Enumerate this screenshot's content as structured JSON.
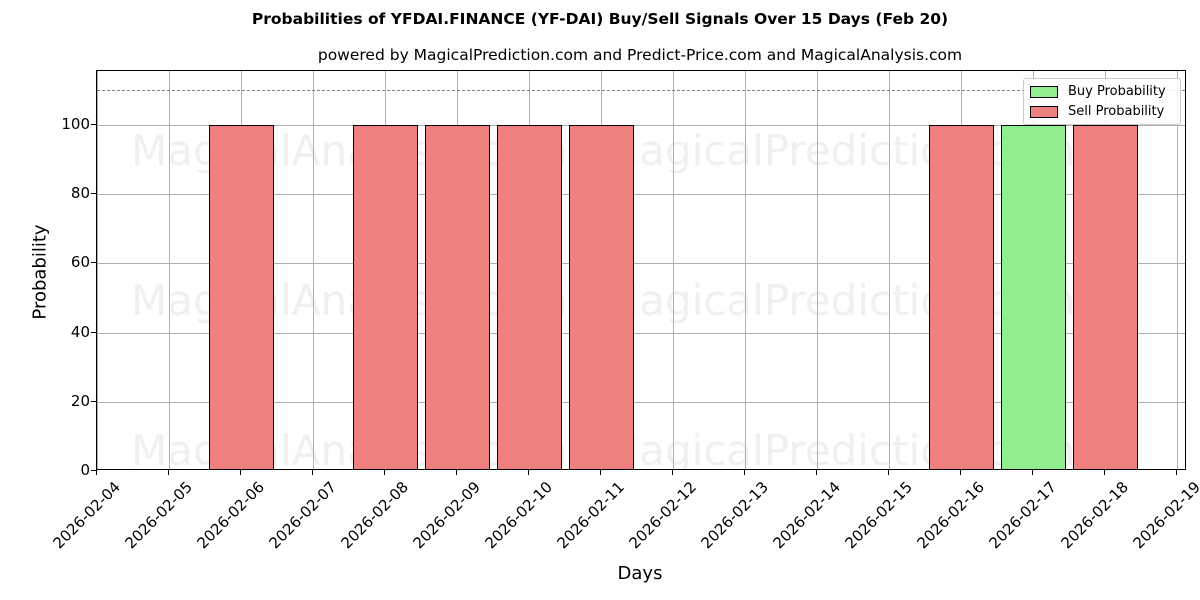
{
  "chart_data": {
    "type": "bar",
    "title": "Probabilities of YFDAI.FINANCE (YF-DAI) Buy/Sell Signals Over 15 Days (Feb 20)",
    "subtitle": "powered by MagicalPrediction.com and Predict-Price.com and MagicalAnalysis.com",
    "xlabel": "Days",
    "ylabel": "Probability",
    "ylim": [
      0,
      115.6
    ],
    "yticks": [
      0,
      20,
      40,
      60,
      80,
      100
    ],
    "xticks": [
      "2026-02-04",
      "2026-02-05",
      "2026-02-06",
      "2026-02-07",
      "2026-02-08",
      "2026-02-09",
      "2026-02-10",
      "2026-02-11",
      "2026-02-12",
      "2026-02-13",
      "2026-02-14",
      "2026-02-15",
      "2026-02-16",
      "2026-02-17",
      "2026-02-18",
      "2026-02-19"
    ],
    "reference_line": {
      "y": 110,
      "style": "dashed",
      "color": "#808080"
    },
    "grid": true,
    "legend_position": "upper right",
    "series": [
      {
        "name": "Buy Probability",
        "color": "#90EE90",
        "points": [
          {
            "x": "2026-02-17",
            "y": 100
          }
        ]
      },
      {
        "name": "Sell Probability",
        "color": "#F08080",
        "points": [
          {
            "x": "2026-02-06",
            "y": 100
          },
          {
            "x": "2026-02-08",
            "y": 100
          },
          {
            "x": "2026-02-09",
            "y": 100
          },
          {
            "x": "2026-02-10",
            "y": 100
          },
          {
            "x": "2026-02-11",
            "y": 100
          },
          {
            "x": "2026-02-16",
            "y": 100
          },
          {
            "x": "2026-02-18",
            "y": 100
          }
        ]
      }
    ],
    "watermarks": [
      "MagicalAnalysis.com",
      "MagicalPrediction.com"
    ]
  },
  "legend": {
    "buy": "Buy Probability",
    "sell": "Sell Probability"
  }
}
